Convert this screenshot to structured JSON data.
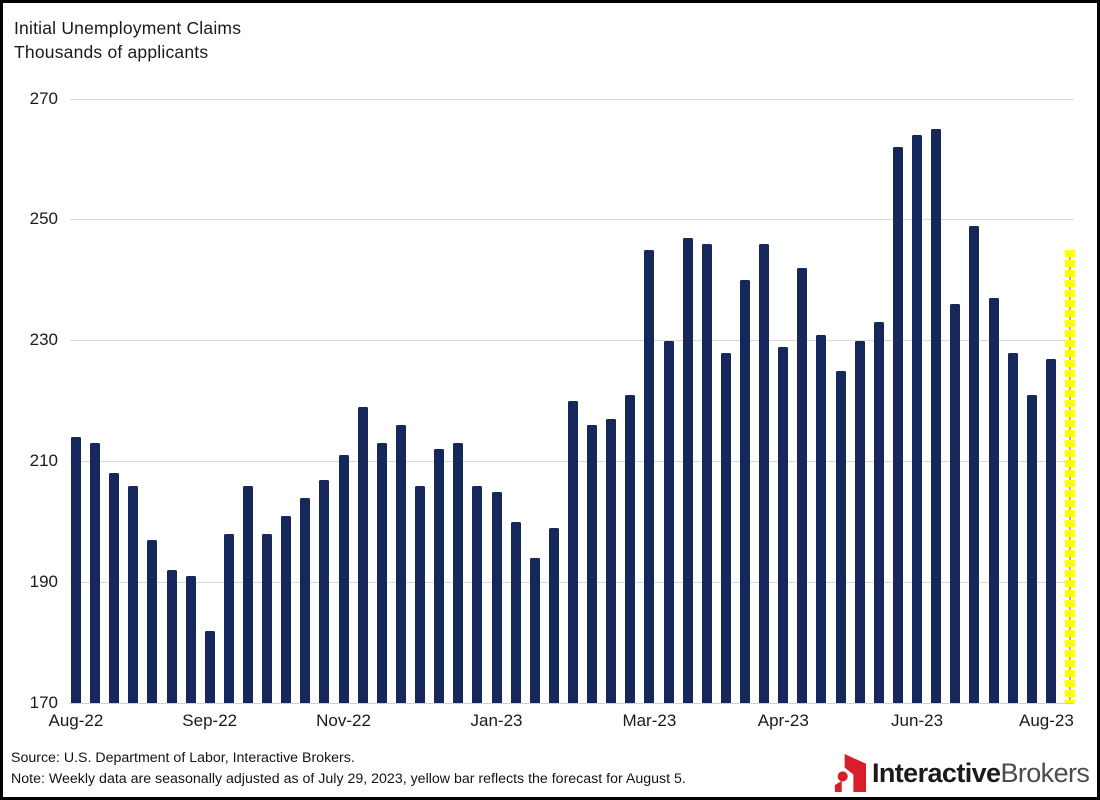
{
  "chart_data": {
    "type": "bar",
    "title": "Initial Unemployment Claims",
    "subtitle": "Thousands of applicants",
    "ylabel": "Thousands of applicants",
    "ylim": [
      170,
      270
    ],
    "yticks": [
      170,
      190,
      210,
      230,
      250,
      270
    ],
    "grid": true,
    "x_axis_labels": [
      "Aug-22",
      "Sep-22",
      "Nov-22",
      "Jan-23",
      "Mar-23",
      "Apr-23",
      "Jun-23",
      "Aug-23"
    ],
    "x_label_indices": [
      0,
      7,
      14,
      22,
      30,
      37,
      44,
      52
    ],
    "values": [
      214,
      213,
      208,
      206,
      197,
      192,
      191,
      182,
      198,
      206,
      198,
      201,
      204,
      207,
      211,
      219,
      213,
      216,
      206,
      212,
      213,
      206,
      205,
      200,
      194,
      199,
      220,
      216,
      217,
      221,
      245,
      230,
      247,
      246,
      228,
      240,
      246,
      229,
      242,
      231,
      225,
      230,
      233,
      262,
      264,
      265,
      236,
      249,
      237,
      228,
      221,
      227,
      245
    ],
    "forecast_index": 52,
    "forecast_value": 245,
    "bar_color": "#16275b",
    "forecast_color": "#ffff00",
    "gridline_color": "#d9d9d9"
  },
  "footer": {
    "source": "Source: U.S. Department of Labor, Interactive Brokers.",
    "note": "Note: Weekly data are seasonally adjusted as of July 29, 2023, yellow bar reflects the forecast for August 5."
  },
  "logo": {
    "name_bold": "Interactive",
    "name_regular": "Brokers",
    "brand_red": "#d81e28"
  }
}
